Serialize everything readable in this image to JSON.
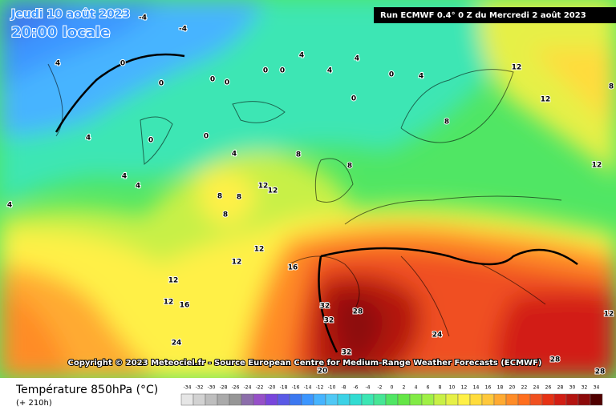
{
  "header": {
    "date": "Jeudi 10 août 2023",
    "time": "20:00 locale",
    "run": "Run ECMWF 0.4° 0 Z du Mercredi 2 août 2023"
  },
  "copyright": "Copyright © 2023 Meteociel.fr - Source European Centre for Medium-Range Weather Forecasts (ECMWF)",
  "legend": {
    "title": "Température 850hPa (°C)",
    "subtitle": "(+ 210h)",
    "ticks": [
      -34,
      -32,
      -30,
      -28,
      -26,
      -24,
      -22,
      -20,
      -18,
      -16,
      -14,
      -12,
      -10,
      -8,
      -6,
      -4,
      -2,
      0,
      2,
      4,
      6,
      8,
      10,
      12,
      14,
      16,
      18,
      20,
      22,
      24,
      26,
      28,
      30,
      32,
      34
    ],
    "colors": [
      "#e6e6e6",
      "#d2d2d2",
      "#bebebe",
      "#aaaaaa",
      "#969696",
      "#8c6eaa",
      "#9650c8",
      "#7846dc",
      "#5a5ae6",
      "#3c78f0",
      "#3c96ff",
      "#46b4ff",
      "#50c8f5",
      "#3cd2e6",
      "#32dcd2",
      "#3ce6b4",
      "#46e696",
      "#50e664",
      "#64e646",
      "#82eb46",
      "#a0f046",
      "#c8f046",
      "#e6f046",
      "#fff046",
      "#ffdc3c",
      "#ffc83c",
      "#ffaa32",
      "#ff8c28",
      "#ff6e1e",
      "#f05020",
      "#e63214",
      "#d21e14",
      "#b41410",
      "#8c0a0a",
      "#500000"
    ]
  },
  "map": {
    "contour_labels": [
      "-4",
      "-4",
      "4",
      "0",
      "0",
      "0",
      "0",
      "0",
      "0",
      "4",
      "4",
      "0",
      "0",
      "4",
      "4",
      "0",
      "0",
      "4",
      "4",
      "4",
      "4",
      "8",
      "8",
      "8",
      "12",
      "12",
      "8",
      "8",
      "12",
      "12",
      "12",
      "4",
      "8",
      "12",
      "12",
      "12",
      "12",
      "16",
      "16",
      "24",
      "32",
      "28",
      "32",
      "32",
      "20",
      "24",
      "28",
      "28",
      "12",
      "8"
    ]
  }
}
